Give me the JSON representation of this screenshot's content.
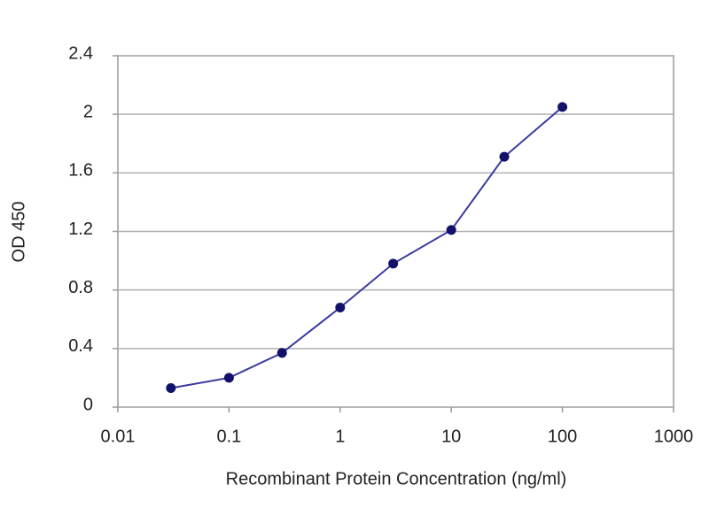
{
  "chart_data": {
    "type": "line",
    "x_label": "Recombinant Protein Concentration (ng/ml)",
    "y_label": "OD 450",
    "x": [
      0.03,
      0.1,
      0.3,
      1,
      3,
      10,
      30,
      100
    ],
    "values": [
      0.13,
      0.2,
      0.37,
      0.68,
      0.98,
      1.21,
      1.71,
      2.05
    ],
    "color": "#3a3aa0",
    "marker_color": "#12126a",
    "xscale": "log",
    "xlim": [
      0.01,
      1000
    ],
    "xticks": [
      0.01,
      0.1,
      1,
      10,
      100,
      1000
    ],
    "ylim": [
      0,
      2.4
    ],
    "yticks": [
      0,
      0.4,
      0.8,
      1.2,
      1.6,
      2,
      2.4
    ],
    "grid": true
  }
}
